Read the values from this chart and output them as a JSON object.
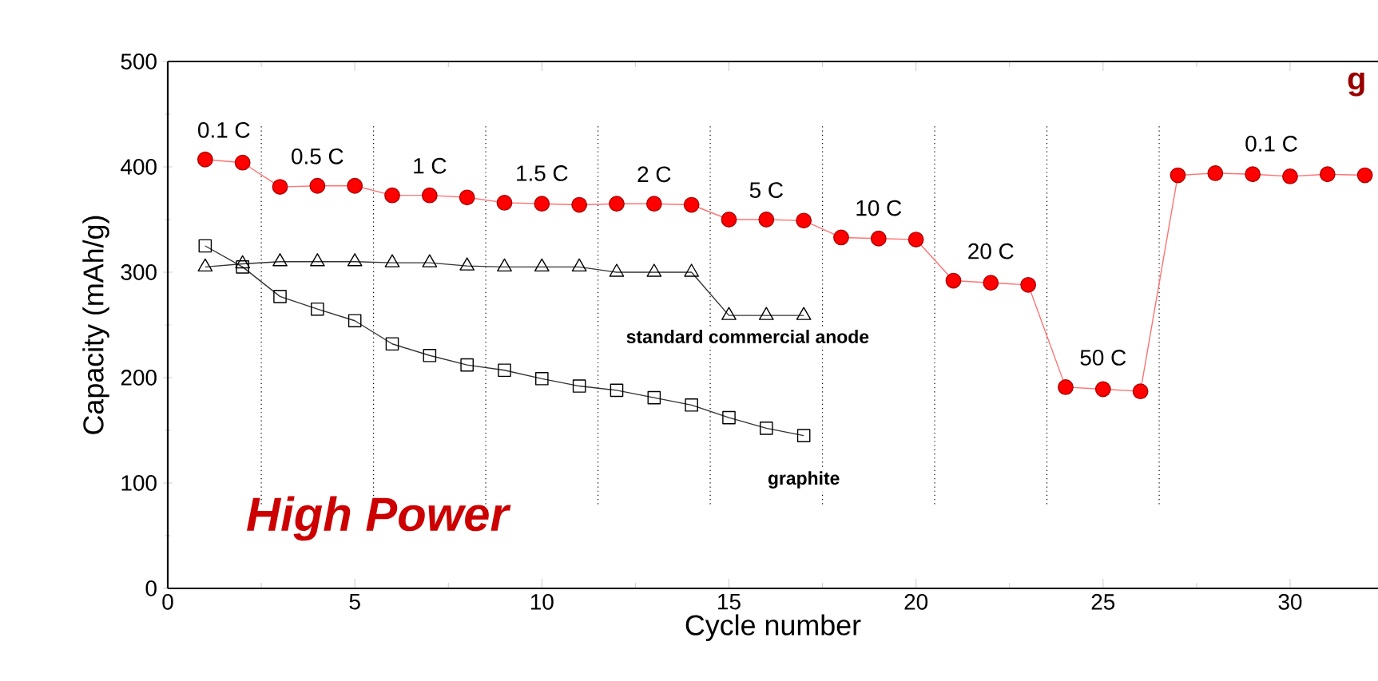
{
  "chart_data": {
    "type": "line",
    "xlabel": "Cycle number",
    "ylabel": "Capacity (mAh/g)",
    "xlim": [
      0,
      32.35
    ],
    "ylim": [
      0,
      500
    ],
    "xticks": [
      0,
      5,
      10,
      15,
      20,
      25,
      30
    ],
    "yticks": [
      0,
      100,
      200,
      300,
      400,
      500
    ],
    "x": [
      1,
      2,
      3,
      4,
      5,
      6,
      7,
      8,
      9,
      10,
      11,
      12,
      13,
      14,
      15,
      16,
      17,
      18,
      19,
      20,
      21,
      22,
      23,
      24,
      25,
      26,
      27,
      28,
      29,
      30,
      31,
      32
    ],
    "series": [
      {
        "color": "#ff0000",
        "marker": "circle",
        "values": [
          407,
          404,
          381,
          382,
          382,
          373,
          373,
          371,
          366,
          365,
          364,
          365,
          365,
          364,
          350,
          350,
          349,
          333,
          332,
          331,
          292,
          290,
          288,
          191,
          189,
          187,
          392,
          394,
          393,
          391,
          393,
          392
        ]
      },
      {
        "name": "standard commercial anode",
        "color": "#000000",
        "marker": "triangle",
        "x": [
          1,
          2,
          3,
          4,
          5,
          6,
          7,
          8,
          9,
          10,
          11,
          12,
          13,
          14,
          15,
          16,
          17
        ],
        "values": [
          305,
          308,
          310,
          310,
          310,
          309,
          309,
          306,
          305,
          305,
          305,
          300,
          300,
          300,
          259,
          259,
          259
        ]
      },
      {
        "name": "graphite",
        "color": "#000000",
        "marker": "square",
        "x": [
          1,
          2,
          3,
          4,
          5,
          6,
          7,
          8,
          9,
          10,
          11,
          12,
          13,
          14,
          15,
          16,
          17
        ],
        "values": [
          325,
          305,
          277,
          265,
          254,
          232,
          221,
          212,
          207,
          199,
          192,
          188,
          181,
          174,
          162,
          152,
          145
        ]
      }
    ],
    "ref_lines": [
      {
        "axis": "x",
        "value": 2.5,
        "color": "#000000",
        "line_style": "dotted"
      },
      {
        "axis": "x",
        "value": 5.5,
        "color": "#000000",
        "line_style": "dotted"
      },
      {
        "axis": "x",
        "value": 8.5,
        "color": "#000000",
        "line_style": "dotted"
      },
      {
        "axis": "x",
        "value": 11.5,
        "color": "#000000",
        "line_style": "dotted"
      },
      {
        "axis": "x",
        "value": 14.5,
        "color": "#000000",
        "line_style": "dotted"
      },
      {
        "axis": "x",
        "value": 17.5,
        "color": "#000000",
        "line_style": "dotted"
      },
      {
        "axis": "x",
        "value": 20.5,
        "color": "#000000",
        "line_style": "dotted"
      },
      {
        "axis": "x",
        "value": 23.5,
        "color": "#000000",
        "line_style": "dotted"
      },
      {
        "axis": "x",
        "value": 26.5,
        "color": "#000000",
        "line_style": "dotted"
      }
    ],
    "annotations": [
      "0.1 C",
      "0.5 C",
      "1 C",
      "1.5 C",
      "2 C",
      "5 C",
      "10 C",
      "20 C",
      "50 C",
      "0.1 C",
      "High Power",
      "g"
    ],
    "grid": false,
    "line_style": "solid"
  }
}
